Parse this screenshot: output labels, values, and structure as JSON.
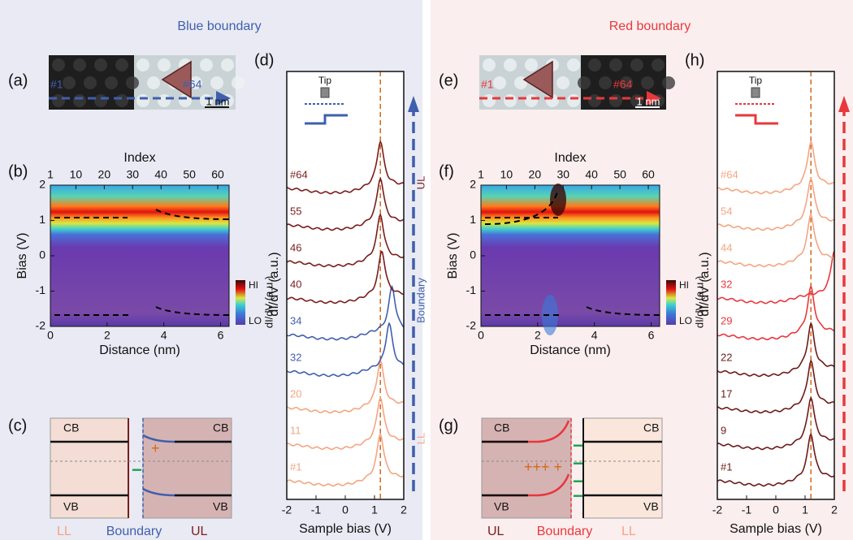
{
  "left": {
    "heading": "Blue boundary",
    "accent": "#3f5fae",
    "background": "#e9eaf3",
    "a": {
      "label": "(a)",
      "start": "#1",
      "end": "#64",
      "scale": "1 nm"
    },
    "b": {
      "label": "(b)",
      "top_title": "Index",
      "xlabel": "Distance (nm)",
      "ylabel": "Bias (V)",
      "xlim": [
        0,
        6.3
      ],
      "ylim": [
        -2,
        2
      ],
      "xticks": [
        0,
        2,
        4,
        6
      ],
      "yticks": [
        -2,
        -1,
        0,
        1,
        2
      ],
      "index_lim": [
        1,
        64
      ],
      "index_ticks": [
        1,
        10,
        20,
        30,
        40,
        50,
        60
      ],
      "cbar_hi": "HI",
      "cbar_lo": "LO",
      "cbar_label": "dI/dV (a.u.)"
    },
    "c": {
      "label": "(c)",
      "cb_left": "CB",
      "cb_right": "CB",
      "vb_left": "VB",
      "vb_right": "VB",
      "plus": "+",
      "minus": "−",
      "bottom": [
        {
          "text": "LL",
          "color": "#f4a582"
        },
        {
          "text": "Boundary",
          "color": "#3f5fae"
        },
        {
          "text": "UL",
          "color": "#7b1c1c"
        }
      ]
    },
    "d": {
      "label": "(d)",
      "tip": "Tip",
      "xlabel": "Sample bias (V)",
      "ylabel": "dI/dV (a.u.)",
      "xlim": [
        -2,
        2
      ],
      "xticks": [
        -2,
        -1,
        0,
        1,
        2
      ],
      "peak_line": 1.2,
      "side": [
        {
          "text": "LL",
          "color": "#f4a582"
        },
        {
          "text": "Boundary",
          "color": "#3f5fae"
        },
        {
          "text": "UL",
          "color": "#7b1c1c"
        }
      ],
      "spectra": [
        {
          "label": "#1",
          "color": "#f4a582",
          "peak": 1.2
        },
        {
          "label": "11",
          "color": "#f4a582",
          "peak": 1.2
        },
        {
          "label": "20",
          "color": "#f4a582",
          "peak": 1.2
        },
        {
          "label": "32",
          "color": "#3f5fae",
          "peak": 1.5
        },
        {
          "label": "34",
          "color": "#3f5fae",
          "peak": 1.6
        },
        {
          "label": "40",
          "color": "#7b1c1c",
          "peak": 1.25
        },
        {
          "label": "46",
          "color": "#7b1c1c",
          "peak": 1.2
        },
        {
          "label": "55",
          "color": "#7b1c1c",
          "peak": 1.2
        },
        {
          "label": "#64",
          "color": "#7b1c1c",
          "peak": 1.2
        }
      ]
    }
  },
  "right": {
    "heading": "Red boundary",
    "accent": "#e8383d",
    "background": "#fbeeee",
    "a": {
      "label": "(e)",
      "start": "#1",
      "end": "#64",
      "scale": "1 nm"
    },
    "b": {
      "label": "(f)",
      "top_title": "Index",
      "xlabel": "Distance (nm)",
      "ylabel": "Bias (V)",
      "xlim": [
        0,
        6.3
      ],
      "ylim": [
        -2,
        2
      ],
      "xticks": [
        0,
        2,
        4,
        6
      ],
      "yticks": [
        -2,
        -1,
        0,
        1,
        2
      ],
      "index_lim": [
        1,
        64
      ],
      "index_ticks": [
        1,
        10,
        20,
        30,
        40,
        50,
        60
      ],
      "cbar_hi": "HI",
      "cbar_lo": "LO",
      "cbar_label": "dI/dV (a.u.)"
    },
    "c": {
      "label": "(g)",
      "cb_left": "CB",
      "cb_right": "CB",
      "vb_left": "VB",
      "vb_right": "VB",
      "plus": "+++ +",
      "minus": "−",
      "bottom": [
        {
          "text": "UL",
          "color": "#7b1c1c"
        },
        {
          "text": "Boundary",
          "color": "#e8383d"
        },
        {
          "text": "LL",
          "color": "#f4a582"
        }
      ]
    },
    "d": {
      "label": "(h)",
      "tip": "Tip",
      "xlabel": "Sample bias (V)",
      "ylabel": "dI/dV (a.u.)",
      "xlim": [
        -2,
        2
      ],
      "xticks": [
        -2,
        -1,
        0,
        1,
        2
      ],
      "peak_line": 1.2,
      "spectra": [
        {
          "label": "#1",
          "color": "#6e1a1a",
          "peak": 1.2
        },
        {
          "label": "9",
          "color": "#6e1a1a",
          "peak": 1.2
        },
        {
          "label": "17",
          "color": "#6e1a1a",
          "peak": 1.2
        },
        {
          "label": "22",
          "color": "#6e1a1a",
          "peak": 1.2
        },
        {
          "label": "29",
          "color": "#e8383d",
          "peak": 1.2
        },
        {
          "label": "32",
          "color": "#e8383d",
          "peak": 2
        },
        {
          "label": "44",
          "color": "#f4a582",
          "peak": 1.2
        },
        {
          "label": "54",
          "color": "#f4a582",
          "peak": 1.2
        },
        {
          "label": "#64",
          "color": "#f4a582",
          "peak": 1.2
        }
      ]
    }
  }
}
